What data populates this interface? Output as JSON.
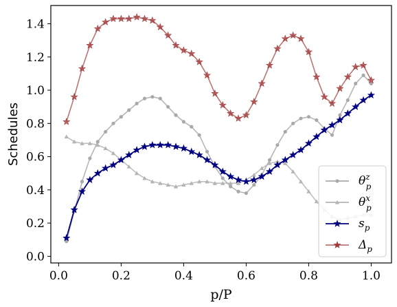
{
  "chart_data": {
    "type": "line",
    "xlabel": "p/P",
    "ylabel": "Schedules",
    "xlim": [
      -0.025,
      1.065
    ],
    "ylim": [
      -0.04,
      1.51
    ],
    "xticks": [
      0.0,
      0.2,
      0.4,
      0.6,
      0.8,
      1.0
    ],
    "xtick_labels": [
      "0.0",
      "0.2",
      "0.4",
      "0.6",
      "0.8",
      "1.0"
    ],
    "yticks": [
      0.0,
      0.2,
      0.4,
      0.6,
      0.8,
      1.0,
      1.2,
      1.4
    ],
    "ytick_labels": [
      "0.0",
      "0.2",
      "0.4",
      "0.6",
      "0.8",
      "1.0",
      "1.2",
      "1.4"
    ],
    "grid": false,
    "legend_position": "bottom-right",
    "x": [
      0.025,
      0.05,
      0.075,
      0.1,
      0.125,
      0.15,
      0.175,
      0.2,
      0.225,
      0.25,
      0.275,
      0.3,
      0.325,
      0.35,
      0.375,
      0.4,
      0.425,
      0.45,
      0.475,
      0.5,
      0.525,
      0.55,
      0.575,
      0.6,
      0.625,
      0.65,
      0.675,
      0.7,
      0.725,
      0.75,
      0.775,
      0.8,
      0.825,
      0.85,
      0.875,
      0.9,
      0.925,
      0.95,
      0.975,
      1.0
    ],
    "series": [
      {
        "name": "θ_p^z",
        "legend_main": "θ",
        "legend_sub": "p",
        "legend_sup": "z",
        "color": "#a9a9a9",
        "marker": "circle",
        "values": [
          0.09,
          0.27,
          0.45,
          0.59,
          0.69,
          0.75,
          0.8,
          0.84,
          0.88,
          0.92,
          0.95,
          0.96,
          0.95,
          0.9,
          0.85,
          0.81,
          0.78,
          0.73,
          0.63,
          0.54,
          0.47,
          0.42,
          0.39,
          0.38,
          0.43,
          0.49,
          0.58,
          0.67,
          0.75,
          0.8,
          0.83,
          0.84,
          0.82,
          0.77,
          0.73,
          0.85,
          0.94,
          1.04,
          1.09,
          1.04
        ]
      },
      {
        "name": "θ_p^x",
        "legend_main": "θ",
        "legend_sub": "p",
        "legend_sup": "x",
        "color": "#b4b4b4",
        "marker": "triangle",
        "values": [
          0.72,
          0.69,
          0.68,
          0.68,
          0.67,
          0.65,
          0.62,
          0.58,
          0.54,
          0.5,
          0.47,
          0.45,
          0.44,
          0.43,
          0.42,
          0.43,
          0.44,
          0.45,
          0.45,
          0.44,
          0.44,
          0.44,
          0.44,
          0.46,
          0.49,
          0.53,
          0.56,
          0.57,
          0.56,
          0.51,
          0.45,
          0.39,
          0.33,
          0.28,
          0.24,
          0.22,
          0.23,
          0.24,
          0.25,
          0.25
        ]
      },
      {
        "name": "s_p",
        "legend_main": "s",
        "legend_sub": "p",
        "legend_sup": "",
        "color": "#000080",
        "marker": "star",
        "values": [
          0.11,
          0.28,
          0.39,
          0.46,
          0.5,
          0.53,
          0.55,
          0.58,
          0.61,
          0.64,
          0.66,
          0.67,
          0.67,
          0.67,
          0.66,
          0.65,
          0.63,
          0.61,
          0.58,
          0.55,
          0.51,
          0.48,
          0.46,
          0.45,
          0.46,
          0.48,
          0.51,
          0.55,
          0.58,
          0.61,
          0.64,
          0.68,
          0.72,
          0.76,
          0.79,
          0.82,
          0.86,
          0.9,
          0.94,
          0.97
        ]
      },
      {
        "name": "Δ_p",
        "legend_main": "Δ",
        "legend_sub": "p",
        "legend_sup": "",
        "color": "#a03a3a",
        "marker": "star",
        "values": [
          0.81,
          0.96,
          1.13,
          1.27,
          1.37,
          1.41,
          1.43,
          1.43,
          1.43,
          1.44,
          1.43,
          1.42,
          1.38,
          1.33,
          1.27,
          1.24,
          1.22,
          1.17,
          1.09,
          0.98,
          0.91,
          0.86,
          0.83,
          0.85,
          0.93,
          1.04,
          1.15,
          1.25,
          1.31,
          1.33,
          1.31,
          1.23,
          1.08,
          0.96,
          0.92,
          1.01,
          1.08,
          1.14,
          1.15,
          1.06
        ]
      }
    ]
  }
}
